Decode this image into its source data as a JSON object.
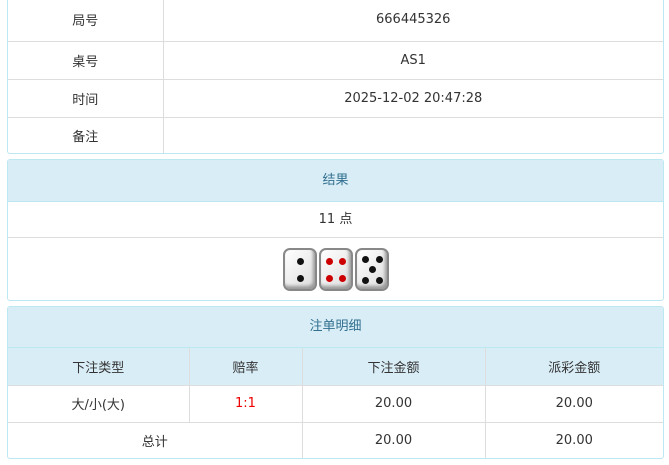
{
  "info": [
    {
      "label": "局号",
      "value": "666445326"
    },
    {
      "label": "桌号",
      "value": "AS1"
    },
    {
      "label": "时间",
      "value": "2025-12-02 20:47:28"
    },
    {
      "label": "备注",
      "value": ""
    }
  ],
  "result": {
    "title": "结果",
    "points": "11 点",
    "dice": [
      2,
      4,
      5
    ],
    "dice_icons": [
      "die-2-icon",
      "die-4-icon",
      "die-5-icon"
    ]
  },
  "bets": {
    "title": "注单明细",
    "columns": [
      "下注类型",
      "赔率",
      "下注金额",
      "派彩金额"
    ],
    "rows": [
      {
        "type": "大/小(大)",
        "odds": "1:1",
        "amount": "20.00",
        "payout": "20.00"
      }
    ],
    "total": {
      "label": "总计",
      "amount": "20.00",
      "payout": "20.00"
    }
  },
  "colors": {
    "header_bg": "#d9edf7",
    "header_text": "#31708f",
    "odds": "#e00000"
  }
}
